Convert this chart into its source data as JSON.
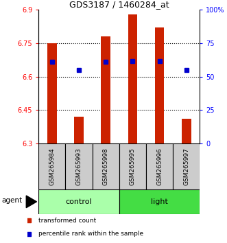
{
  "title": "GDS3187 / 1460284_at",
  "samples": [
    "GSM265984",
    "GSM265993",
    "GSM265998",
    "GSM265995",
    "GSM265996",
    "GSM265997"
  ],
  "bar_tops": [
    6.75,
    6.42,
    6.78,
    6.88,
    6.82,
    6.41
  ],
  "bar_base": 6.3,
  "blue_dots_left": [
    6.665,
    6.63,
    6.665,
    6.668,
    6.668,
    6.63
  ],
  "ylim_left": [
    6.3,
    6.9
  ],
  "ylim_right": [
    0,
    100
  ],
  "yticks_left": [
    6.3,
    6.45,
    6.6,
    6.75,
    6.9
  ],
  "yticks_right": [
    0,
    25,
    50,
    75,
    100
  ],
  "ytick_labels_right": [
    "0",
    "25",
    "50",
    "75",
    "100%"
  ],
  "groups": [
    {
      "label": "control",
      "samples": [
        0,
        1,
        2
      ],
      "color": "#AAFFAA"
    },
    {
      "label": "light",
      "samples": [
        3,
        4,
        5
      ],
      "color": "#44DD44"
    }
  ],
  "bar_color": "#CC2200",
  "dot_color": "#0000CC",
  "sample_box_color": "#CCCCCC",
  "bar_width": 0.35,
  "agent_label": "agent",
  "gridlines": [
    6.45,
    6.6,
    6.75
  ],
  "legend": [
    {
      "color": "#CC2200",
      "label": "transformed count"
    },
    {
      "color": "#0000CC",
      "label": "percentile rank within the sample"
    }
  ]
}
